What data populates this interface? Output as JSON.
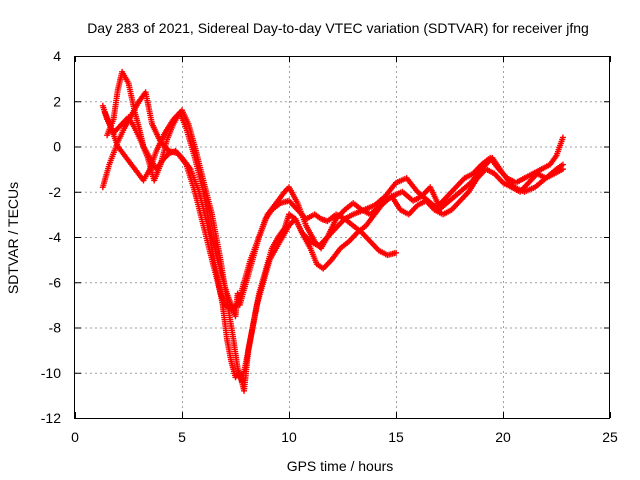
{
  "chart_data": {
    "type": "scatter",
    "title": "Day 283 of 2021, Sidereal Day-to-day VTEC variation (SDTVAR) for receiver jfng",
    "xlabel": "GPS time / hours",
    "ylabel": "SDTVAR / TECUs",
    "xlim": [
      0,
      25
    ],
    "ylim": [
      -12,
      4
    ],
    "xticks": [
      0,
      5,
      10,
      15,
      20,
      25
    ],
    "yticks": [
      -12,
      -10,
      -8,
      -6,
      -4,
      -2,
      0,
      2,
      4
    ],
    "grid": true,
    "marker": "+",
    "color": "#ff0000",
    "series": [
      {
        "x": [
          1.3,
          1.5,
          1.8,
          2.1,
          2.5,
          2.8,
          3.1,
          3.4,
          3.7,
          4.0,
          4.3,
          4.6,
          4.9,
          5.2,
          5.6,
          6.0,
          6.4,
          6.8,
          7.1,
          7.3,
          7.5,
          7.6,
          7.7,
          8.0,
          8.3,
          8.6,
          8.9,
          9.2,
          9.6,
          10.0,
          10.4,
          10.8,
          11.2,
          11.5,
          11.8,
          12.2,
          12.6,
          13.0,
          13.4,
          13.8,
          14.2,
          14.6,
          15.0
        ],
        "y": [
          1.8,
          1.2,
          0.6,
          0.9,
          1.3,
          0.8,
          0.2,
          -0.5,
          -1.5,
          -0.8,
          0.3,
          1.0,
          1.5,
          0.8,
          -0.5,
          -2.0,
          -4.0,
          -5.5,
          -6.5,
          -7.0,
          -7.5,
          -6.5,
          -7.0,
          -6.0,
          -5.0,
          -4.0,
          -3.2,
          -2.8,
          -2.5,
          -2.4,
          -2.8,
          -3.2,
          -3.0,
          -3.2,
          -3.3,
          -3.0,
          -3.2,
          -3.5,
          -3.8,
          -4.2,
          -4.6,
          -4.8,
          -4.7
        ]
      },
      {
        "x": [
          1.3,
          1.6,
          2.0,
          2.3,
          2.7,
          3.0,
          3.3,
          3.6,
          4.0,
          4.4,
          4.8,
          5.2,
          5.6,
          6.0,
          6.4,
          6.8,
          7.0,
          7.3,
          7.6,
          7.9,
          8.2,
          8.6,
          9.0,
          9.4,
          9.8,
          10.0,
          10.4,
          10.8,
          11.2,
          11.5,
          11.8,
          12.2,
          12.6,
          13.0,
          13.4,
          13.8,
          14.3,
          14.8,
          15.3,
          15.8,
          16.2,
          16.6,
          17.0,
          17.4,
          17.8,
          18.2,
          18.6,
          19.0,
          19.4,
          19.8,
          20.2,
          20.6,
          21.0,
          21.4,
          21.8,
          22.2,
          22.5,
          22.8
        ],
        "y": [
          -1.8,
          -0.8,
          0.2,
          0.8,
          1.5,
          2.0,
          2.4,
          1.0,
          0.2,
          -0.2,
          -0.3,
          -0.8,
          -2.0,
          -3.5,
          -5.0,
          -6.5,
          -7.0,
          -7.2,
          -7.0,
          -6.0,
          -5.0,
          -4.0,
          -3.0,
          -2.5,
          -2.0,
          -1.8,
          -2.5,
          -3.5,
          -4.2,
          -4.5,
          -4.0,
          -3.2,
          -2.8,
          -2.5,
          -2.8,
          -3.0,
          -2.6,
          -2.2,
          -2.0,
          -2.4,
          -2.2,
          -1.8,
          -2.6,
          -2.2,
          -1.8,
          -1.4,
          -1.2,
          -0.8,
          -0.5,
          -1.0,
          -1.4,
          -1.6,
          -1.4,
          -1.2,
          -1.0,
          -0.8,
          -0.4,
          0.4
        ]
      },
      {
        "x": [
          1.5,
          1.8,
          2.0,
          2.2,
          2.5,
          2.8,
          3.0,
          3.2,
          3.5,
          3.8,
          4.1,
          4.4,
          4.7,
          5.0,
          5.4,
          5.8,
          6.2,
          6.6,
          6.9,
          7.1,
          7.3,
          7.5,
          7.7,
          7.9,
          8.1,
          8.3,
          8.6,
          8.9,
          9.2,
          9.5,
          9.8,
          10.0,
          10.3,
          10.6,
          11.0,
          11.3,
          11.6,
          12.0,
          12.4,
          12.8,
          13.2,
          13.6,
          14.0,
          14.4,
          14.8,
          15.2,
          15.6,
          16.0,
          16.4,
          16.8,
          17.2,
          17.6,
          18.0,
          18.4,
          18.8,
          19.2,
          19.6,
          20.0,
          20.4,
          20.8,
          21.2,
          21.6,
          22.0,
          22.4,
          22.8
        ],
        "y": [
          0.5,
          1.2,
          2.5,
          3.3,
          2.8,
          1.5,
          0.8,
          0.0,
          -0.5,
          -1.0,
          -0.6,
          -0.3,
          -0.2,
          -0.5,
          -1.0,
          -2.0,
          -3.5,
          -5.5,
          -7.0,
          -8.5,
          -9.5,
          -10.2,
          -10.0,
          -10.8,
          -9.0,
          -8.0,
          -6.5,
          -5.5,
          -4.5,
          -4.0,
          -3.6,
          -3.0,
          -3.2,
          -3.8,
          -4.5,
          -5.2,
          -5.4,
          -5.0,
          -4.5,
          -4.2,
          -3.8,
          -3.5,
          -3.0,
          -2.5,
          -2.2,
          -2.8,
          -3.0,
          -2.6,
          -2.4,
          -2.8,
          -3.0,
          -2.8,
          -2.4,
          -2.0,
          -1.4,
          -1.0,
          -1.2,
          -1.6,
          -1.8,
          -2.0,
          -1.6,
          -1.2,
          -1.4,
          -1.2,
          -1.0
        ]
      },
      {
        "x": [
          1.4,
          1.7,
          2.0,
          2.4,
          2.8,
          3.2,
          3.5,
          3.8,
          4.2,
          4.6,
          5.0,
          5.3,
          5.6,
          6.0,
          6.4,
          6.8,
          7.1,
          7.4,
          7.6,
          7.8,
          8.0,
          8.2,
          8.5,
          8.8,
          9.1,
          9.4,
          9.7,
          10.0,
          10.3,
          10.6,
          11.0,
          11.4,
          11.8,
          12.2,
          12.6,
          13.0,
          13.5,
          14.0,
          14.5,
          15.0,
          15.5,
          16.0,
          16.5,
          17.0,
          17.5,
          18.0,
          18.5,
          19.0,
          19.5,
          20.0,
          20.5,
          21.0,
          21.5,
          22.0,
          22.5,
          22.8
        ],
        "y": [
          1.5,
          0.8,
          0.0,
          -0.5,
          -1.0,
          -1.5,
          -1.0,
          -0.2,
          0.6,
          1.2,
          1.6,
          1.0,
          0.0,
          -1.5,
          -3.0,
          -5.0,
          -6.8,
          -8.5,
          -9.8,
          -10.4,
          -9.5,
          -8.5,
          -7.0,
          -6.0,
          -5.0,
          -4.5,
          -4.0,
          -3.5,
          -3.2,
          -3.8,
          -4.2,
          -4.4,
          -4.0,
          -3.6,
          -3.2,
          -3.0,
          -2.8,
          -2.6,
          -2.2,
          -1.6,
          -1.4,
          -2.0,
          -2.4,
          -2.8,
          -2.4,
          -2.0,
          -1.6,
          -1.0,
          -0.5,
          -1.2,
          -1.8,
          -2.0,
          -1.8,
          -1.4,
          -1.0,
          -0.8
        ]
      }
    ]
  }
}
